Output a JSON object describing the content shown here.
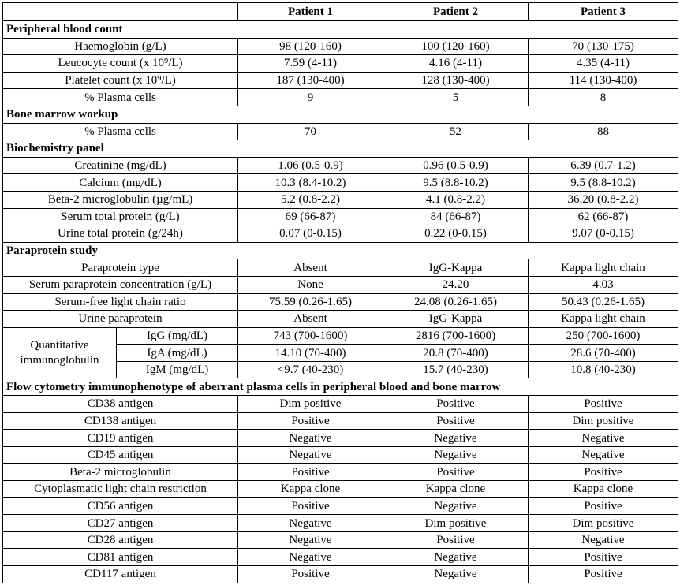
{
  "header": [
    "",
    "Patient 1",
    "Patient 2",
    "Patient 3"
  ],
  "sections": [
    {
      "title": "Peripheral blood count",
      "rows": [
        {
          "label": "Haemoglobin (g/L)",
          "values": [
            "98 (120-160)",
            "100 (120-160)",
            "70 (130-175)"
          ]
        },
        {
          "label": "Leucocyte count (x 10⁹/L)",
          "values": [
            "7.59 (4-11)",
            "4.16 (4-11)",
            "4.35 (4-11)"
          ]
        },
        {
          "label": "Platelet count (x 10⁹/L)",
          "values": [
            "187 (130-400)",
            "128 (130-400)",
            "114 (130-400)"
          ]
        },
        {
          "label": "% Plasma cells",
          "values": [
            "9",
            "5",
            "8"
          ]
        }
      ]
    },
    {
      "title": "Bone marrow workup",
      "rows": [
        {
          "label": "% Plasma cells",
          "values": [
            "70",
            "52",
            "88"
          ]
        }
      ]
    },
    {
      "title": "Biochemistry panel",
      "rows": [
        {
          "label": "Creatinine (mg/dL)",
          "values": [
            "1.06 (0.5-0.9)",
            "0.96 (0.5-0.9)",
            "6.39 (0.7-1.2)"
          ]
        },
        {
          "label": "Calcium (mg/dL)",
          "values": [
            "10.3 (8.4-10.2)",
            "9.5 (8.8-10.2)",
            "9.5 (8.8-10.2)"
          ]
        },
        {
          "label": "Beta-2 microglobulin (µg/mL)",
          "values": [
            "5.2 (0.8-2.2)",
            "4.1 (0.8-2.2)",
            "36.20 (0.8-2.2)"
          ]
        },
        {
          "label": "Serum total protein (g/L)",
          "values": [
            "69 (66-87)",
            "84 (66-87)",
            "62 (66-87)"
          ]
        },
        {
          "label": "Urine total protein (g/24h)",
          "values": [
            "0.07 (0-0.15)",
            "0.22 (0-0.15)",
            "9.07 (0-0.15)"
          ]
        }
      ]
    },
    {
      "title": "Paraprotein study",
      "rows": [
        {
          "label": "Paraprotein type",
          "values": [
            "Absent",
            "IgG-Kappa",
            "Kappa light chain"
          ]
        },
        {
          "label": "Serum paraprotein concentration (g/L)",
          "values": [
            "None",
            "24.20",
            "4.03"
          ]
        },
        {
          "label": "Serum-free light chain ratio",
          "values": [
            "75.59 (0.26-1.65)",
            "24.08 (0.26-1.65)",
            "50.43 (0.26-1.65)"
          ]
        },
        {
          "label": "Urine paraprotein",
          "values": [
            "Absent",
            "IgG-Kappa",
            "Kappa light chain"
          ]
        },
        {
          "group": "Quantitative immunoglobulin",
          "label": "IgG (mg/dL)",
          "values": [
            "743 (700-1600)",
            "2816 (700-1600)",
            "250 (700-1600)"
          ]
        },
        {
          "label": "IgA (mg/dL)",
          "values": [
            "14.10 (70-400)",
            "20.8 (70-400)",
            "28.6 (70-400)"
          ]
        },
        {
          "label": "IgM (mg/dL)",
          "values": [
            "<9.7 (40-230)",
            "15.7 (40-230)",
            "10.8 (40-230)"
          ]
        }
      ]
    },
    {
      "title": "Flow cytometry immunophenotype of aberrant plasma cells in peripheral blood and bone marrow",
      "rows": [
        {
          "label": "CD38 antigen",
          "values": [
            "Dim positive",
            "Positive",
            "Positive"
          ]
        },
        {
          "label": "CD138 antigen",
          "values": [
            "Positive",
            "Positive",
            "Dim positive"
          ]
        },
        {
          "label": "CD19 antigen",
          "values": [
            "Negative",
            "Negative",
            "Negative"
          ]
        },
        {
          "label": "CD45 antigen",
          "values": [
            "Negative",
            "Negative",
            "Negative"
          ]
        },
        {
          "label": "Beta-2 microglobulin",
          "values": [
            "Positive",
            "Positive",
            "Positive"
          ]
        },
        {
          "label": "Cytoplasmatic light chain restriction",
          "values": [
            "Kappa clone",
            "Kappa clone",
            "Kappa clone"
          ]
        },
        {
          "label": "CD56 antigen",
          "values": [
            "Positive",
            "Negative",
            "Positive"
          ]
        },
        {
          "label": "CD27 antigen",
          "values": [
            "Negative",
            "Dim positive",
            "Dim positive"
          ]
        },
        {
          "label": "CD28 antigen",
          "values": [
            "Negative",
            "Positive",
            "Negative"
          ]
        },
        {
          "label": "CD81 antigen",
          "values": [
            "Negative",
            "Negative",
            "Positive"
          ]
        },
        {
          "label": "CD117 antigen",
          "values": [
            "Positive",
            "Negative",
            "Positive"
          ]
        }
      ]
    }
  ]
}
